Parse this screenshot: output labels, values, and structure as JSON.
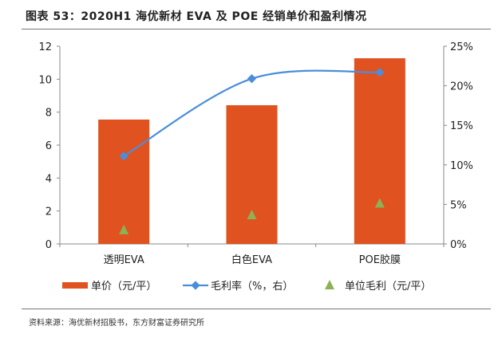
{
  "title": "图表 53：2020H1 海优新材 EVA 及 POE 经销单价和盈利情况",
  "source": "资料来源：海优新材招股书，东方财富证券研究所",
  "chart_data": {
    "type": "bar",
    "categories": [
      "透明EVA",
      "白色EVA",
      "POE胶膜"
    ],
    "series": [
      {
        "name": "单价（元/平）",
        "type": "bar",
        "axis": "left",
        "color": "#E0521F",
        "values": [
          7.55,
          8.42,
          11.27
        ]
      },
      {
        "name": "毛利率（%，右）",
        "type": "line",
        "axis": "right",
        "color": "#4A8EDB",
        "values": [
          11.1,
          20.9,
          21.7
        ]
      },
      {
        "name": "单位毛利（元/平）",
        "type": "scatter",
        "axis": "left",
        "color": "#8DB255",
        "values": [
          0.83,
          1.74,
          2.45
        ]
      }
    ],
    "y_left": {
      "ylim": [
        0,
        12
      ],
      "ticks": [
        "0",
        "2",
        "4",
        "6",
        "8",
        "10",
        "12"
      ]
    },
    "y_right": {
      "ylim": [
        0,
        25
      ],
      "ticks": [
        "0%",
        "5%",
        "10%",
        "15%",
        "20%",
        "25%"
      ]
    },
    "grid": false,
    "legend_position": "bottom"
  }
}
